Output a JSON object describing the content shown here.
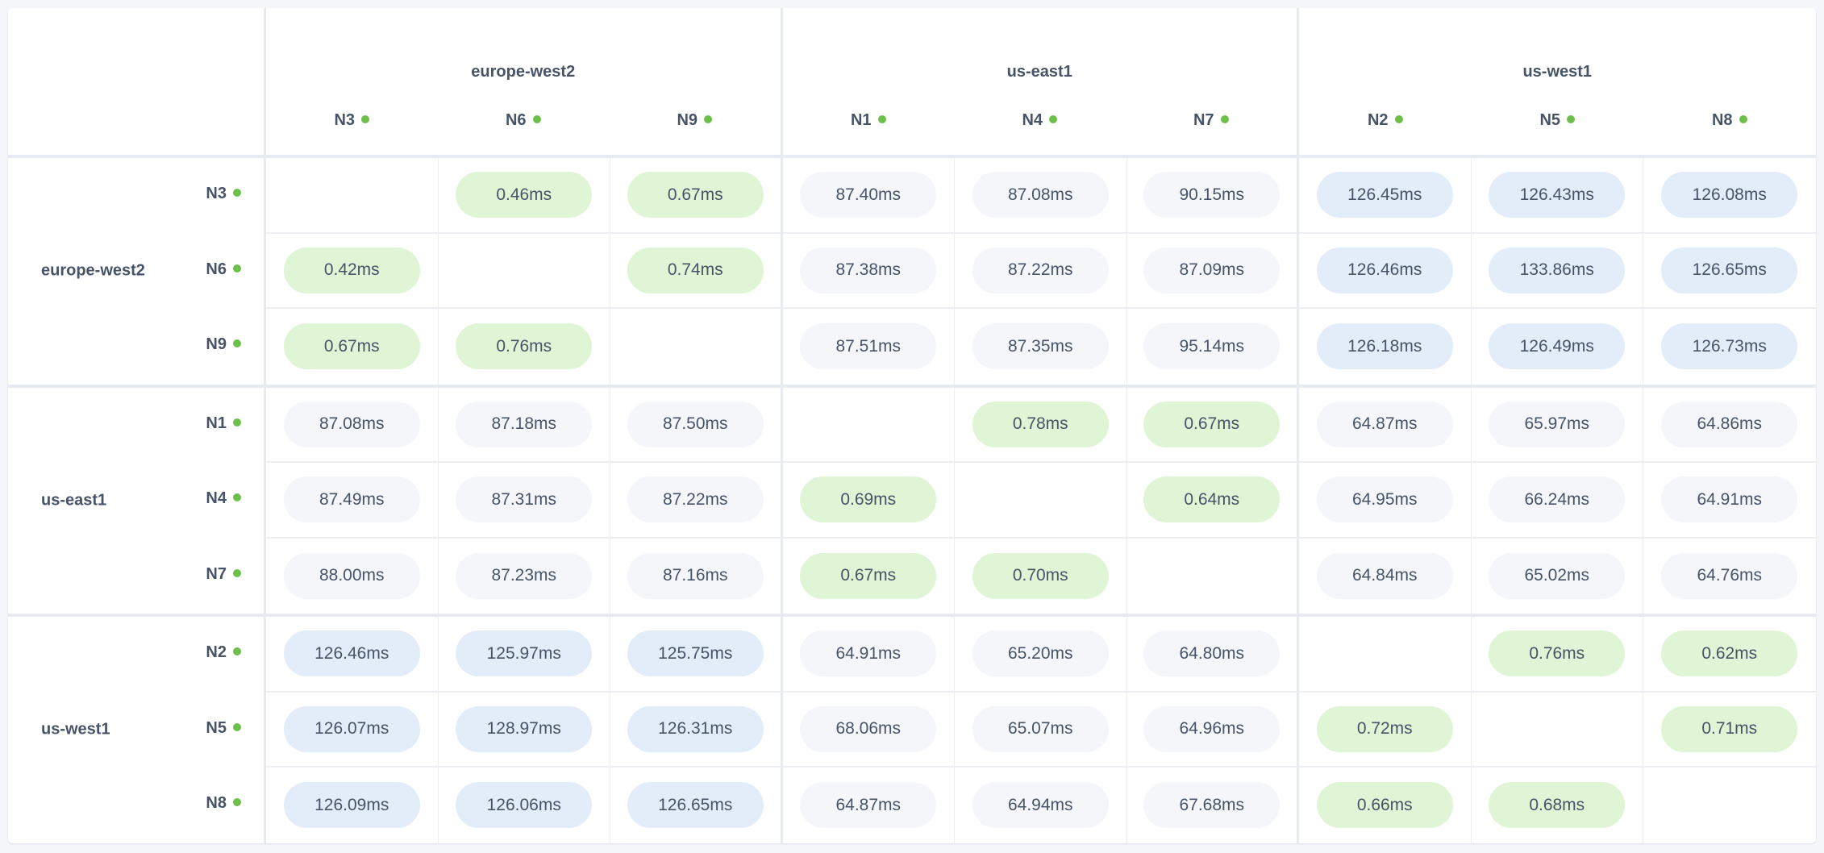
{
  "colors": {
    "local": "#dff5d6",
    "far": "#e3edf9",
    "mid": "#f4f6fa",
    "status_dot": "#6cc04a"
  },
  "zones": [
    {
      "name": "europe-west2",
      "nodes": [
        "N3",
        "N6",
        "N9"
      ]
    },
    {
      "name": "us-east1",
      "nodes": [
        "N1",
        "N4",
        "N7"
      ]
    },
    {
      "name": "us-west1",
      "nodes": [
        "N2",
        "N5",
        "N8"
      ]
    }
  ],
  "latency_matrix": [
    [
      "",
      "0.46ms",
      "0.67ms",
      "87.40ms",
      "87.08ms",
      "90.15ms",
      "126.45ms",
      "126.43ms",
      "126.08ms"
    ],
    [
      "0.42ms",
      "",
      "0.74ms",
      "87.38ms",
      "87.22ms",
      "87.09ms",
      "126.46ms",
      "133.86ms",
      "126.65ms"
    ],
    [
      "0.67ms",
      "0.76ms",
      "",
      "87.51ms",
      "87.35ms",
      "95.14ms",
      "126.18ms",
      "126.49ms",
      "126.73ms"
    ],
    [
      "87.08ms",
      "87.18ms",
      "87.50ms",
      "",
      "0.78ms",
      "0.67ms",
      "64.87ms",
      "65.97ms",
      "64.86ms"
    ],
    [
      "87.49ms",
      "87.31ms",
      "87.22ms",
      "0.69ms",
      "",
      "0.64ms",
      "64.95ms",
      "66.24ms",
      "64.91ms"
    ],
    [
      "88.00ms",
      "87.23ms",
      "87.16ms",
      "0.67ms",
      "0.70ms",
      "",
      "64.84ms",
      "65.02ms",
      "64.76ms"
    ],
    [
      "126.46ms",
      "125.97ms",
      "125.75ms",
      "64.91ms",
      "65.20ms",
      "64.80ms",
      "",
      "0.76ms",
      "0.62ms"
    ],
    [
      "126.07ms",
      "128.97ms",
      "126.31ms",
      "68.06ms",
      "65.07ms",
      "64.96ms",
      "0.72ms",
      "",
      "0.71ms"
    ],
    [
      "126.09ms",
      "126.06ms",
      "126.65ms",
      "64.87ms",
      "64.94ms",
      "67.68ms",
      "0.66ms",
      "0.68ms",
      ""
    ]
  ]
}
